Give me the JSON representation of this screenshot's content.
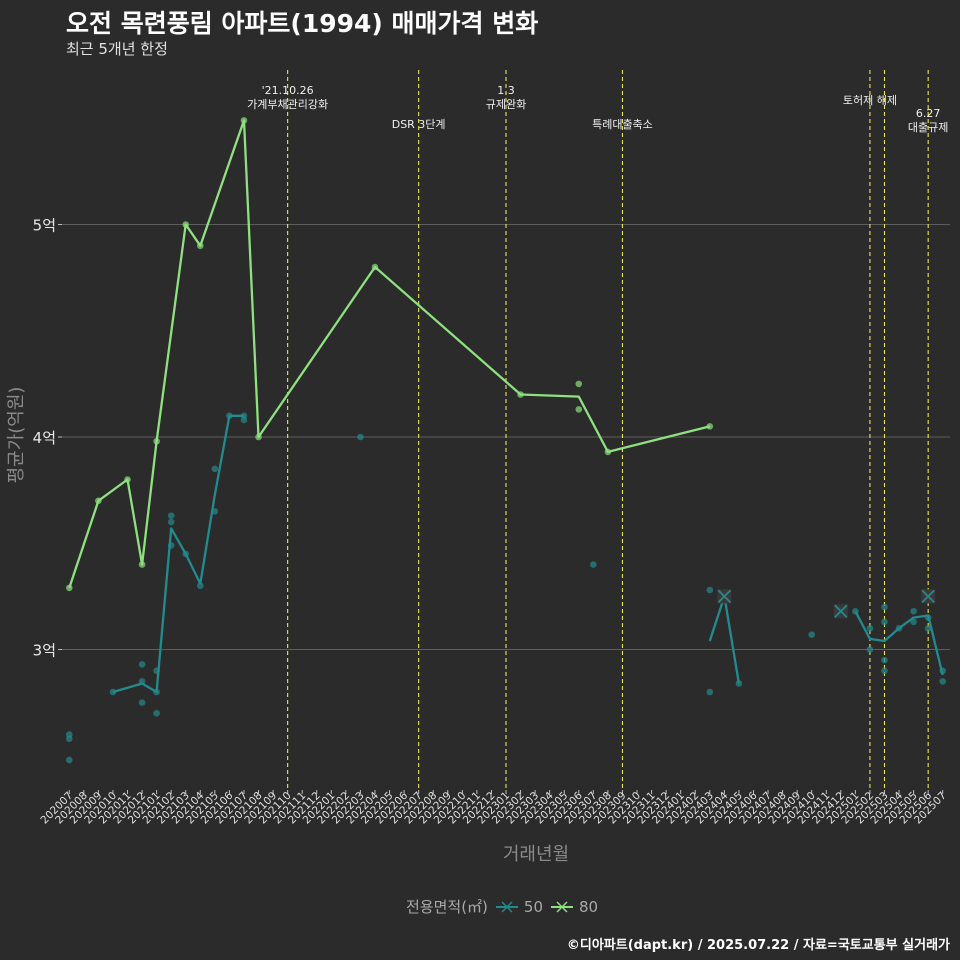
{
  "title": "오전 목련풍림 아파트(1994) 매매가격 변화",
  "subtitle": "최근 5개년 한정",
  "caption": "©디아파트(dapt.kr) / 2025.07.22 / 자료=국토교통부 실거래가",
  "legend": {
    "title": "전용면적(㎡)",
    "items": [
      "50",
      "80"
    ]
  },
  "colors": {
    "s50": "#238a8d",
    "s80": "#8fe080",
    "grid": "#5e5e5e",
    "vline": "#e8e84c",
    "background": "#2b2b2b"
  },
  "chart_data": {
    "type": "line",
    "xlabel": "거래년월",
    "ylabel": "평균가(억원)",
    "categories": [
      "202007",
      "202008",
      "202009",
      "202010",
      "202011",
      "202012",
      "202101",
      "202102",
      "202103",
      "202104",
      "202105",
      "202106",
      "202107",
      "202108",
      "202109",
      "202110",
      "202111",
      "202112",
      "202201",
      "202202",
      "202203",
      "202204",
      "202205",
      "202206",
      "202207",
      "202208",
      "202209",
      "202210",
      "202211",
      "202212",
      "202301",
      "202302",
      "202303",
      "202304",
      "202305",
      "202306",
      "202307",
      "202308",
      "202309",
      "202310",
      "202311",
      "202312",
      "202401",
      "202402",
      "202403",
      "202404",
      "202405",
      "202406",
      "202407",
      "202408",
      "202409",
      "202410",
      "202411",
      "202412",
      "202501",
      "202502",
      "202503",
      "202504",
      "202505",
      "202506",
      "202507"
    ],
    "yticks": [
      {
        "v": 3,
        "label": "3억"
      },
      {
        "v": 4,
        "label": "4억"
      },
      {
        "v": 5,
        "label": "5억"
      }
    ],
    "ylim": [
      2.35,
      5.85
    ],
    "grid": true,
    "legend_position": "bottom",
    "series": [
      {
        "name": "50",
        "line": [
          {
            "x": "202010",
            "y": 2.8
          },
          {
            "x": "202012",
            "y": 2.84
          },
          {
            "x": "202101",
            "y": 2.8
          },
          {
            "x": "202102",
            "y": 3.57
          },
          {
            "x": "202103",
            "y": 3.45
          },
          {
            "x": "202104",
            "y": 3.31
          },
          {
            "x": "202105",
            "y": 3.73
          },
          {
            "x": "202106",
            "y": 4.1
          },
          {
            "x": "202107",
            "y": 4.1
          },
          null,
          {
            "x": "202403",
            "y": 3.04
          },
          {
            "x": "202404",
            "y": 3.25
          },
          {
            "x": "202405",
            "y": 2.84
          },
          null,
          {
            "x": "202501",
            "y": 3.18
          },
          {
            "x": "202502",
            "y": 3.05
          },
          {
            "x": "202503",
            "y": 3.04
          },
          {
            "x": "202504",
            "y": 3.1
          },
          {
            "x": "202505",
            "y": 3.15
          },
          {
            "x": "202506",
            "y": 3.16
          },
          {
            "x": "202507",
            "y": 2.88
          }
        ]
      },
      {
        "name": "80",
        "line": [
          {
            "x": "202007",
            "y": 3.29
          },
          {
            "x": "202009",
            "y": 3.7
          },
          {
            "x": "202011",
            "y": 3.8
          },
          {
            "x": "202012",
            "y": 3.4
          },
          {
            "x": "202101",
            "y": 3.98
          },
          {
            "x": "202103",
            "y": 5.0
          },
          {
            "x": "202104",
            "y": 4.9
          },
          {
            "x": "202107",
            "y": 5.49
          },
          {
            "x": "202108",
            "y": 4.0
          },
          {
            "x": "202204",
            "y": 4.8
          },
          {
            "x": "202302",
            "y": 4.2
          },
          {
            "x": "202306",
            "y": 4.19
          },
          {
            "x": "202308",
            "y": 3.93
          },
          {
            "x": "202403",
            "y": 4.05
          }
        ]
      }
    ],
    "points": [
      {
        "s": "50",
        "x": "202007",
        "y": 2.6
      },
      {
        "s": "50",
        "x": "202007",
        "y": 2.58
      },
      {
        "s": "50",
        "x": "202007",
        "y": 2.48
      },
      {
        "s": "50",
        "x": "202010",
        "y": 2.8
      },
      {
        "s": "50",
        "x": "202012",
        "y": 2.93
      },
      {
        "s": "50",
        "x": "202012",
        "y": 2.85
      },
      {
        "s": "50",
        "x": "202012",
        "y": 2.75
      },
      {
        "s": "50",
        "x": "202101",
        "y": 2.9
      },
      {
        "s": "50",
        "x": "202101",
        "y": 2.8
      },
      {
        "s": "50",
        "x": "202101",
        "y": 2.7
      },
      {
        "s": "50",
        "x": "202102",
        "y": 3.63
      },
      {
        "s": "50",
        "x": "202102",
        "y": 3.6
      },
      {
        "s": "50",
        "x": "202102",
        "y": 3.49
      },
      {
        "s": "50",
        "x": "202103",
        "y": 3.45
      },
      {
        "s": "50",
        "x": "202104",
        "y": 3.3
      },
      {
        "s": "50",
        "x": "202105",
        "y": 3.85
      },
      {
        "s": "50",
        "x": "202105",
        "y": 3.65
      },
      {
        "s": "50",
        "x": "202106",
        "y": 4.1
      },
      {
        "s": "50",
        "x": "202107",
        "y": 4.1
      },
      {
        "s": "50",
        "x": "202107",
        "y": 4.08
      },
      {
        "s": "50",
        "x": "202203",
        "y": 4.0
      },
      {
        "s": "50",
        "x": "202307",
        "y": 3.4
      },
      {
        "s": "50",
        "x": "202403",
        "y": 3.28
      },
      {
        "s": "50",
        "x": "202403",
        "y": 2.8
      },
      {
        "s": "50",
        "x": "202405",
        "y": 2.84
      },
      {
        "s": "50",
        "x": "202410",
        "y": 3.07
      },
      {
        "s": "50",
        "x": "202501",
        "y": 3.18
      },
      {
        "s": "50",
        "x": "202502",
        "y": 3.1
      },
      {
        "s": "50",
        "x": "202502",
        "y": 3.0
      },
      {
        "s": "50",
        "x": "202503",
        "y": 3.2
      },
      {
        "s": "50",
        "x": "202503",
        "y": 3.13
      },
      {
        "s": "50",
        "x": "202503",
        "y": 2.95
      },
      {
        "s": "50",
        "x": "202503",
        "y": 2.9
      },
      {
        "s": "50",
        "x": "202504",
        "y": 3.1
      },
      {
        "s": "50",
        "x": "202505",
        "y": 3.18
      },
      {
        "s": "50",
        "x": "202505",
        "y": 3.13
      },
      {
        "s": "50",
        "x": "202506",
        "y": 3.15
      },
      {
        "s": "50",
        "x": "202506",
        "y": 3.1
      },
      {
        "s": "50",
        "x": "202507",
        "y": 2.9
      },
      {
        "s": "50",
        "x": "202507",
        "y": 2.85
      },
      {
        "s": "80",
        "x": "202007",
        "y": 3.29
      },
      {
        "s": "80",
        "x": "202009",
        "y": 3.7
      },
      {
        "s": "80",
        "x": "202011",
        "y": 3.8
      },
      {
        "s": "80",
        "x": "202012",
        "y": 3.4
      },
      {
        "s": "80",
        "x": "202101",
        "y": 3.98
      },
      {
        "s": "80",
        "x": "202103",
        "y": 5.0
      },
      {
        "s": "80",
        "x": "202104",
        "y": 4.9
      },
      {
        "s": "80",
        "x": "202107",
        "y": 5.49
      },
      {
        "s": "80",
        "x": "202108",
        "y": 4.0
      },
      {
        "s": "80",
        "x": "202204",
        "y": 4.8
      },
      {
        "s": "80",
        "x": "202302",
        "y": 4.2
      },
      {
        "s": "80",
        "x": "202306",
        "y": 4.25
      },
      {
        "s": "80",
        "x": "202306",
        "y": 4.13
      },
      {
        "s": "80",
        "x": "202308",
        "y": 3.93
      },
      {
        "s": "80",
        "x": "202403",
        "y": 4.05
      }
    ],
    "crosses": [
      {
        "s": "50",
        "x": "202404",
        "y": 3.25
      },
      {
        "s": "50",
        "x": "202412",
        "y": 3.18
      },
      {
        "s": "50",
        "x": "202506",
        "y": 3.25
      }
    ],
    "events": [
      {
        "x": "202110",
        "lines": [
          "'21.10.26",
          "가계부채관리강화"
        ],
        "level": "top"
      },
      {
        "x": "202207",
        "lines": [
          "DSR 3단계"
        ],
        "level": "low"
      },
      {
        "x": "202301",
        "lines": [
          "1.3",
          "규제완화"
        ],
        "level": "top"
      },
      {
        "x": "202309",
        "lines": [
          "특례대출축소"
        ],
        "level": "low"
      },
      {
        "x": "202502",
        "lines": [
          "토허제 해제"
        ],
        "level": "mid"
      },
      {
        "x": "202503",
        "lines": [],
        "level": "mid"
      },
      {
        "x": "202506",
        "lines": [
          "6.27",
          "대출규제"
        ],
        "level": "right"
      }
    ]
  }
}
